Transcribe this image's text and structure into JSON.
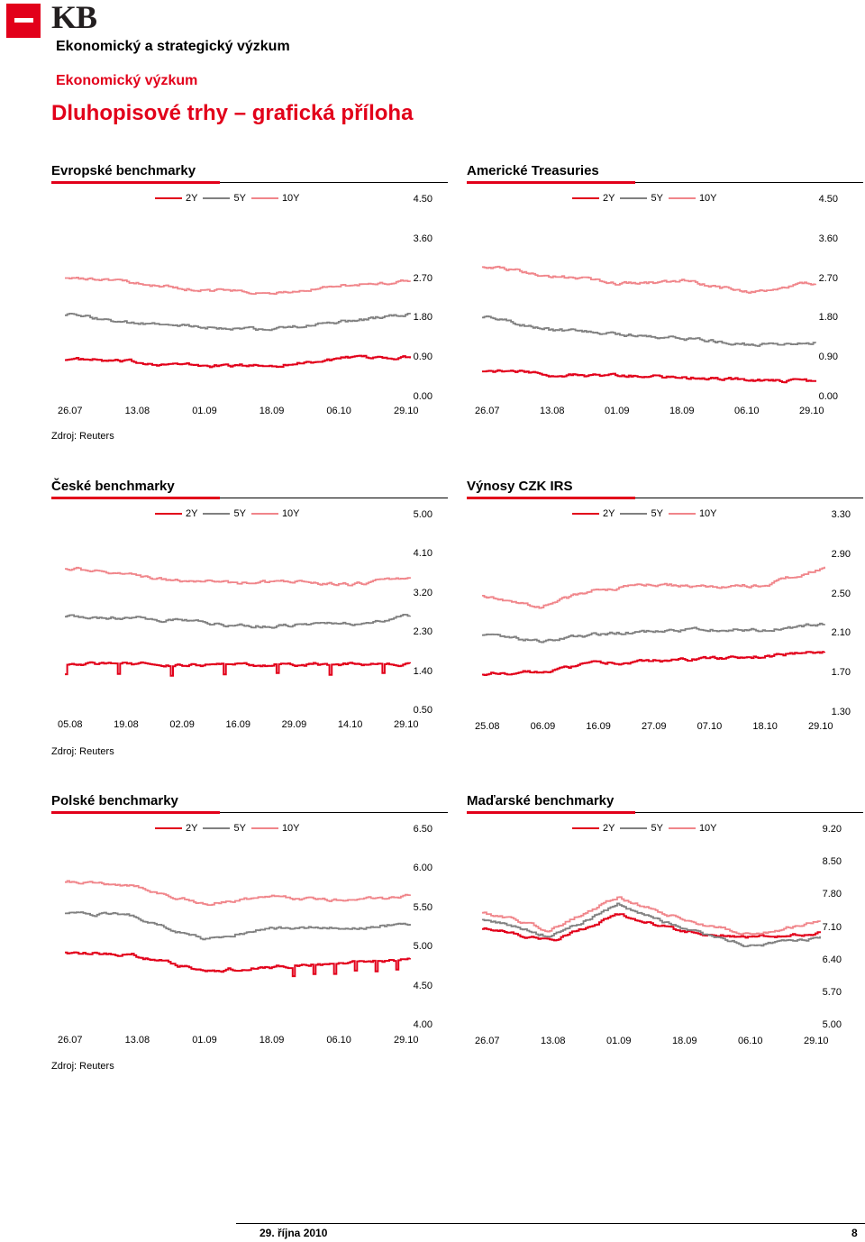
{
  "brand": {
    "logo": "KB",
    "accent": "#e2001a"
  },
  "header": {
    "department": "Ekonomický a strategický výzkum",
    "subdepartment": "Ekonomický výzkum",
    "title": "Dluhopisové trhy – grafická příloha"
  },
  "colors": {
    "2Y": "#e2001a",
    "5Y": "#808080",
    "10Y": "#f0858a"
  },
  "charts": [
    {
      "id": "eu",
      "title": "Evropské benchmarky",
      "legend": [
        "2Y",
        "5Y",
        "10Y"
      ],
      "yticks": [
        "4.50",
        "3.60",
        "2.70",
        "1.80",
        "0.90",
        "0.00"
      ],
      "xticks": [
        "26.07",
        "13.08",
        "01.09",
        "18.09",
        "06.10",
        "29.10"
      ],
      "source": "Zdroj: Reuters"
    },
    {
      "id": "us",
      "title": "Americké Treasuries",
      "legend": [
        "2Y",
        "5Y",
        "10Y"
      ],
      "yticks": [
        "4.50",
        "3.60",
        "2.70",
        "1.80",
        "0.90",
        "0.00"
      ],
      "xticks": [
        "26.07",
        "13.08",
        "01.09",
        "18.09",
        "06.10",
        "29.10"
      ]
    },
    {
      "id": "cz",
      "title": "České benchmarky",
      "legend": [
        "2Y",
        "5Y",
        "10Y"
      ],
      "yticks": [
        "5.00",
        "4.10",
        "3.20",
        "2.30",
        "1.40",
        "0.50"
      ],
      "xticks": [
        "05.08",
        "19.08",
        "02.09",
        "16.09",
        "29.09",
        "14.10",
        "29.10"
      ],
      "source": "Zdroj: Reuters"
    },
    {
      "id": "irs",
      "title": "Výnosy CZK IRS",
      "legend": [
        "2Y",
        "5Y",
        "10Y"
      ],
      "yticks": [
        "3.30",
        "2.90",
        "2.50",
        "2.10",
        "1.70",
        "1.30"
      ],
      "xticks": [
        "25.08",
        "06.09",
        "16.09",
        "27.09",
        "07.10",
        "18.10",
        "29.10"
      ]
    },
    {
      "id": "pl",
      "title": "Polské benchmarky",
      "legend": [
        "2Y",
        "5Y",
        "10Y"
      ],
      "yticks": [
        "6.50",
        "6.00",
        "5.50",
        "5.00",
        "4.50",
        "4.00"
      ],
      "xticks": [
        "26.07",
        "13.08",
        "01.09",
        "18.09",
        "06.10",
        "29.10"
      ],
      "source": "Zdroj: Reuters"
    },
    {
      "id": "hu",
      "title": "Maďarské benchmarky",
      "legend": [
        "2Y",
        "5Y",
        "10Y"
      ],
      "yticks": [
        "9.20",
        "8.50",
        "7.80",
        "7.10",
        "6.40",
        "5.70",
        "5.00"
      ],
      "xticks": [
        "26.07",
        "13.08",
        "01.09",
        "18.09",
        "06.10",
        "29.10"
      ]
    }
  ],
  "chart_data": [
    {
      "type": "line",
      "title": "Evropské benchmarky",
      "ylim": [
        0,
        4.5
      ],
      "x": [
        "26.07",
        "13.08",
        "01.09",
        "18.09",
        "06.10",
        "29.10"
      ],
      "series": [
        {
          "name": "2Y",
          "values": [
            0.88,
            0.8,
            0.72,
            0.73,
            0.88,
            0.92
          ]
        },
        {
          "name": "5Y",
          "values": [
            1.9,
            1.68,
            1.6,
            1.55,
            1.72,
            1.9
          ]
        },
        {
          "name": "10Y",
          "values": [
            2.75,
            2.6,
            2.45,
            2.4,
            2.55,
            2.65
          ]
        }
      ]
    },
    {
      "type": "line",
      "title": "Americké Treasuries",
      "ylim": [
        0,
        4.5
      ],
      "x": [
        "26.07",
        "13.08",
        "01.09",
        "18.09",
        "06.10",
        "29.10"
      ],
      "series": [
        {
          "name": "2Y",
          "values": [
            0.62,
            0.53,
            0.5,
            0.45,
            0.4,
            0.36
          ]
        },
        {
          "name": "5Y",
          "values": [
            1.85,
            1.55,
            1.45,
            1.35,
            1.2,
            1.25
          ]
        },
        {
          "name": "10Y",
          "values": [
            3.0,
            2.78,
            2.6,
            2.65,
            2.4,
            2.62
          ]
        }
      ]
    },
    {
      "type": "line",
      "title": "České benchmarky",
      "ylim": [
        0.5,
        5.0
      ],
      "x": [
        "05.08",
        "19.08",
        "02.09",
        "16.09",
        "29.09",
        "14.10",
        "29.10"
      ],
      "series": [
        {
          "name": "2Y",
          "values": [
            1.6,
            1.58,
            1.57,
            1.56,
            1.57,
            1.58,
            1.6
          ]
        },
        {
          "name": "5Y",
          "values": [
            2.7,
            2.65,
            2.58,
            2.45,
            2.48,
            2.5,
            2.7
          ]
        },
        {
          "name": "10Y",
          "values": [
            3.8,
            3.65,
            3.5,
            3.45,
            3.48,
            3.4,
            3.6
          ]
        }
      ]
    },
    {
      "type": "line",
      "title": "Výnosy CZK IRS",
      "ylim": [
        1.3,
        3.3
      ],
      "x": [
        "25.08",
        "06.09",
        "16.09",
        "27.09",
        "07.10",
        "18.10",
        "29.10"
      ],
      "series": [
        {
          "name": "2Y",
          "values": [
            1.7,
            1.72,
            1.8,
            1.82,
            1.85,
            1.88,
            1.92
          ]
        },
        {
          "name": "5Y",
          "values": [
            2.1,
            2.02,
            2.1,
            2.13,
            2.15,
            2.14,
            2.2
          ]
        },
        {
          "name": "10Y",
          "values": [
            2.5,
            2.38,
            2.55,
            2.6,
            2.58,
            2.6,
            2.78
          ]
        }
      ]
    },
    {
      "type": "line",
      "title": "Polské benchmarky",
      "ylim": [
        4.0,
        6.5
      ],
      "x": [
        "26.07",
        "13.08",
        "01.09",
        "18.09",
        "06.10",
        "29.10"
      ],
      "series": [
        {
          "name": "2Y",
          "values": [
            4.95,
            4.9,
            4.7,
            4.75,
            4.8,
            4.85
          ]
        },
        {
          "name": "5Y",
          "values": [
            5.45,
            5.4,
            5.1,
            5.25,
            5.25,
            5.3
          ]
        },
        {
          "name": "10Y",
          "values": [
            5.85,
            5.8,
            5.55,
            5.65,
            5.6,
            5.65
          ]
        }
      ]
    },
    {
      "type": "line",
      "title": "Maďarské benchmarky",
      "ylim": [
        5.0,
        9.2
      ],
      "x": [
        "26.07",
        "13.08",
        "01.09",
        "18.09",
        "06.10",
        "29.10"
      ],
      "series": [
        {
          "name": "2Y",
          "values": [
            7.1,
            6.8,
            7.4,
            7.0,
            6.9,
            7.0
          ]
        },
        {
          "name": "5Y",
          "values": [
            7.3,
            6.9,
            7.6,
            7.05,
            6.7,
            6.9
          ]
        },
        {
          "name": "10Y",
          "values": [
            7.45,
            7.05,
            7.75,
            7.25,
            6.95,
            7.25
          ]
        }
      ]
    }
  ],
  "footer": {
    "date": "29. října 2010",
    "page": "8"
  }
}
